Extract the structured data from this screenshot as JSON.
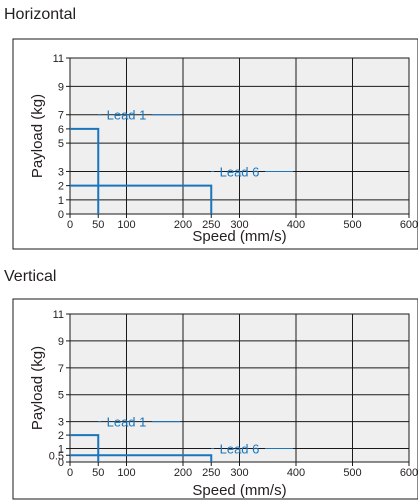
{
  "colors": {
    "series": "#1a75bb",
    "grid": "#1a1a1a",
    "plot_bg": "#efefef"
  },
  "chart_data": [
    {
      "type": "line",
      "title": "Horizontal",
      "xlabel": "Speed (mm/s)",
      "ylabel": "Payload (kg)",
      "xlim": [
        0,
        600
      ],
      "ylim": [
        0,
        11
      ],
      "x_ticks": [
        0,
        50,
        100,
        200,
        250,
        300,
        400,
        500,
        600
      ],
      "y_ticks": [
        0,
        1,
        2,
        3,
        5,
        6,
        7,
        9,
        11
      ],
      "grid": true,
      "series": [
        {
          "name": "Lead 1",
          "x": [
            0,
            50,
            50
          ],
          "y": [
            6,
            6,
            0
          ],
          "label_anchor": [
            100,
            7
          ]
        },
        {
          "name": "Lead 6",
          "x": [
            0,
            250,
            250
          ],
          "y": [
            2,
            2,
            0
          ],
          "label_anchor": [
            300,
            3
          ]
        }
      ]
    },
    {
      "type": "line",
      "title": "Vertical",
      "xlabel": "Speed (mm/s)",
      "ylabel": "Payload (kg)",
      "xlim": [
        0,
        600
      ],
      "ylim": [
        0,
        11
      ],
      "x_ticks": [
        0,
        50,
        100,
        200,
        250,
        300,
        400,
        500,
        600
      ],
      "y_ticks": [
        0,
        0.5,
        1,
        2,
        3,
        5,
        7,
        9,
        11
      ],
      "grid": true,
      "series": [
        {
          "name": "Lead 1",
          "x": [
            0,
            50,
            50
          ],
          "y": [
            2,
            2,
            0
          ],
          "label_anchor": [
            100,
            3
          ]
        },
        {
          "name": "Lead 6",
          "x": [
            0,
            250,
            250
          ],
          "y": [
            0.5,
            0.5,
            0
          ],
          "label_anchor": [
            300,
            1
          ]
        }
      ]
    }
  ]
}
